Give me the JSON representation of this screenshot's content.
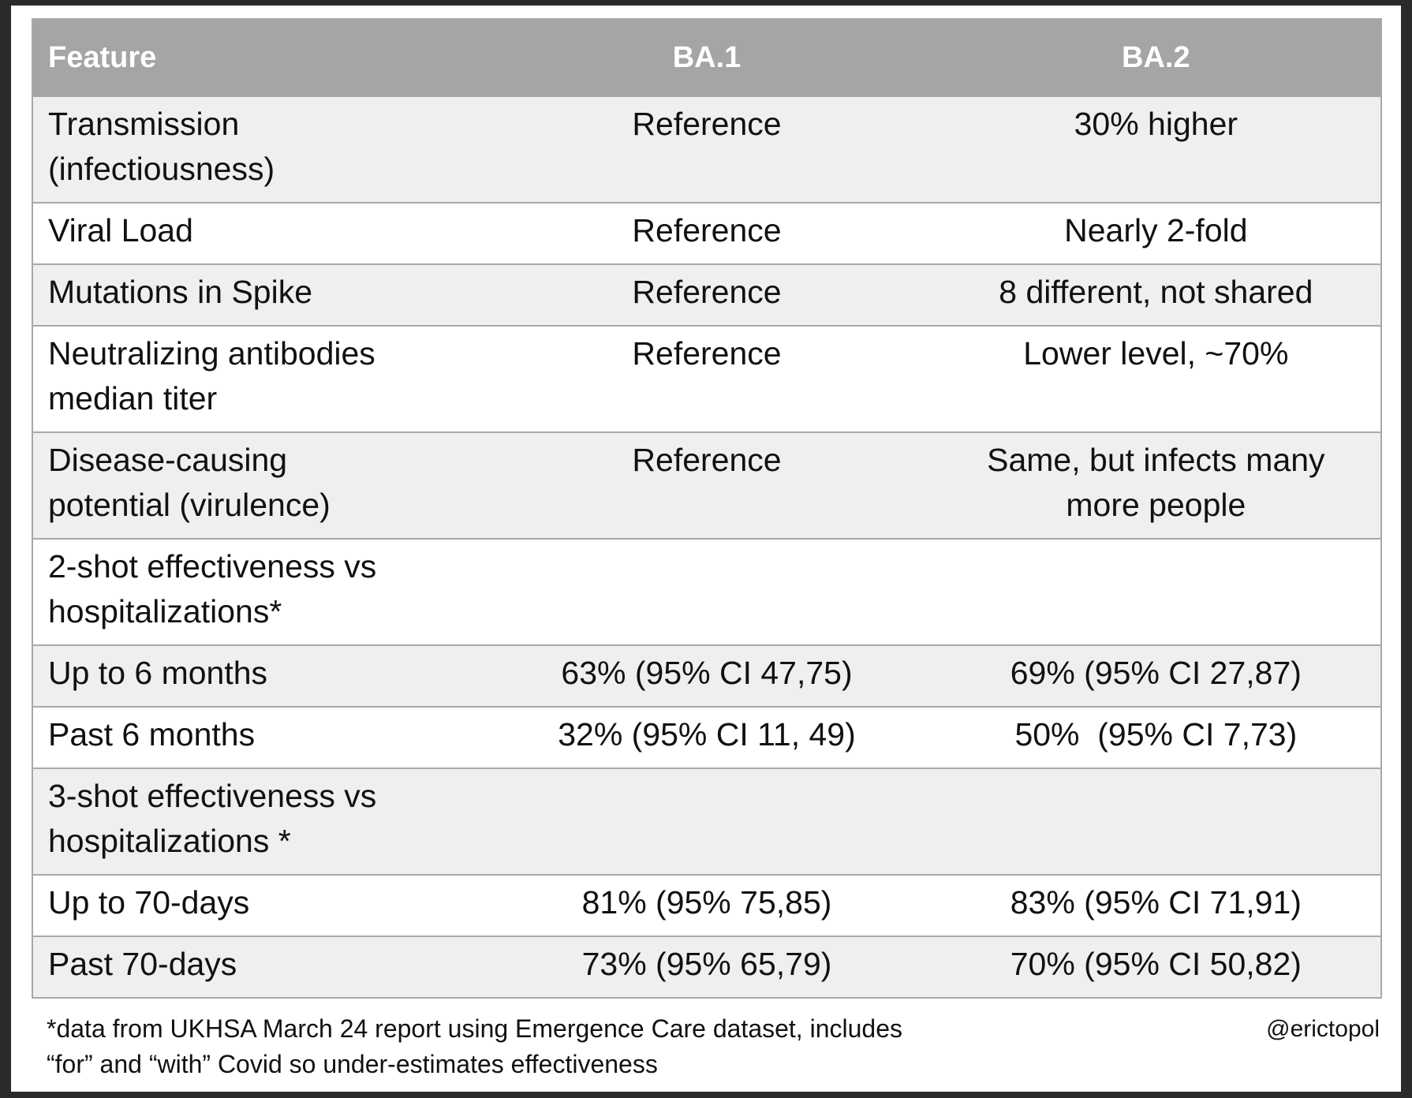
{
  "table": {
    "header": [
      "Feature",
      "BA.1",
      "BA.2"
    ],
    "rows": [
      [
        [
          "Transmission",
          "(infectiousness)"
        ],
        [
          "Reference"
        ],
        [
          "30% higher"
        ]
      ],
      [
        [
          "Viral Load"
        ],
        [
          "Reference"
        ],
        [
          "Nearly 2-fold"
        ]
      ],
      [
        [
          "Mutations in Spike"
        ],
        [
          "Reference"
        ],
        [
          "8 different, not shared"
        ]
      ],
      [
        [
          "Neutralizing antibodies",
          "median titer"
        ],
        [
          "Reference"
        ],
        [
          "Lower level, ~70%"
        ]
      ],
      [
        [
          "Disease-causing",
          "potential (virulence)"
        ],
        [
          "Reference"
        ],
        [
          "Same, but infects many",
          "more people"
        ]
      ],
      [
        [
          "2-shot effectiveness vs",
          "hospitalizations*"
        ],
        [],
        []
      ],
      [
        [
          "Up to 6 months"
        ],
        [
          "63% (95% CI 47,75)"
        ],
        [
          "69% (95% CI 27,87)"
        ]
      ],
      [
        [
          "Past 6 months"
        ],
        [
          "32% (95% CI 11, 49)"
        ],
        [
          "50%  (95% CI 7,73)"
        ]
      ],
      [
        [
          "3-shot effectiveness vs",
          "hospitalizations *"
        ],
        [],
        []
      ],
      [
        [
          "Up to 70-days"
        ],
        [
          "81% (95% 75,85)"
        ],
        [
          "83% (95% CI 71,91)"
        ]
      ],
      [
        [
          "Past 70-days"
        ],
        [
          "73% (95% 65,79)"
        ],
        [
          "70% (95% CI 50,82)"
        ]
      ]
    ]
  },
  "footer": {
    "note": [
      "*data from UKHSA March 24 report using Emergence Care dataset, includes",
      "“for” and “with” Covid so under-estimates effectiveness"
    ],
    "credit": "@erictopol"
  }
}
